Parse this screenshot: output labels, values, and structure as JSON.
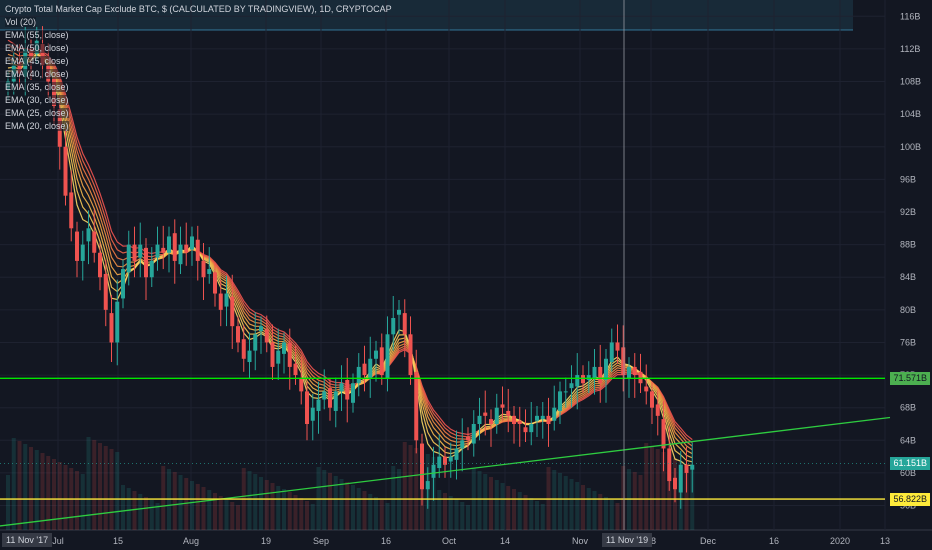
{
  "header": {
    "title": "Crypto Total Market Cap Exclude BTC, $ (CALCULATED BY TRADINGVIEW), 1D, CRYPTOCAP",
    "indicators": [
      "Vol (20)",
      "EMA (55, close)",
      "EMA (50, close)",
      "EMA (45, close)",
      "EMA (40, close)",
      "EMA (35, close)",
      "EMA (30, close)",
      "EMA (25, close)",
      "EMA (20, close)"
    ]
  },
  "price_axis": {
    "ticks": [
      "116B",
      "112B",
      "108B",
      "104B",
      "100B",
      "96B",
      "92B",
      "88B",
      "84B",
      "80B",
      "76B",
      "72B",
      "68B",
      "64B",
      "60B",
      "56B"
    ],
    "badges": [
      {
        "label": "71.571B",
        "color": "#4caf50",
        "text_color": "#131722"
      },
      {
        "label": "61.151B",
        "color": "#26a69a",
        "text_color": "#ffffff"
      },
      {
        "label": "56.822B",
        "color": "#ffeb3b",
        "text_color": "#131722"
      }
    ]
  },
  "time_axis": {
    "ticks": [
      "Jul",
      "15",
      "Aug",
      "19",
      "Sep",
      "16",
      "Oct",
      "14",
      "Nov",
      "18",
      "Dec",
      "16",
      "2020",
      "13"
    ],
    "badges": [
      "11 Nov '17",
      "11 Nov '19"
    ]
  },
  "colors": {
    "background": "#131722",
    "up_candle": "#26a69a",
    "down_candle": "#ef5350",
    "resistance_line": "#00e600",
    "support_line": "#ffeb3b",
    "trendline": "#2ecc40",
    "crosshair": "#9598a1"
  },
  "chart_data": {
    "type": "candlestick",
    "ylim": [
      53,
      118
    ],
    "unit": "B",
    "levels": [
      {
        "name": "resistance",
        "value": 71.6
      },
      {
        "name": "support",
        "value": 56.8
      },
      {
        "name": "last",
        "value": 61.15
      }
    ],
    "trendline": {
      "from": [
        0,
        53.5
      ],
      "to": [
        125,
        66.8
      ]
    },
    "closes": [
      108,
      110,
      109,
      112,
      111,
      113,
      110,
      108,
      105,
      100,
      94,
      90,
      86,
      88,
      90,
      87,
      84,
      80,
      76,
      81,
      85,
      88,
      86,
      88,
      84,
      86,
      88,
      87,
      89,
      86,
      88,
      87,
      89,
      86,
      84,
      85,
      82,
      80,
      82,
      78,
      76,
      74,
      75,
      77,
      78,
      76,
      73,
      75,
      76,
      73,
      72,
      70,
      66,
      68,
      69,
      70,
      68,
      70,
      71,
      69,
      71,
      73,
      72,
      74,
      75,
      72,
      77,
      79,
      80,
      77,
      72,
      64,
      58,
      59,
      61,
      62,
      61,
      62,
      63,
      64,
      64,
      66,
      67,
      67,
      66,
      68,
      68,
      67,
      66,
      66,
      65,
      66,
      67,
      67,
      66,
      68,
      70,
      70,
      71,
      72,
      71,
      72,
      73,
      71,
      74,
      76,
      75,
      72,
      73,
      72,
      71,
      70,
      68,
      67,
      63,
      59,
      58,
      61,
      60,
      61
    ]
  }
}
